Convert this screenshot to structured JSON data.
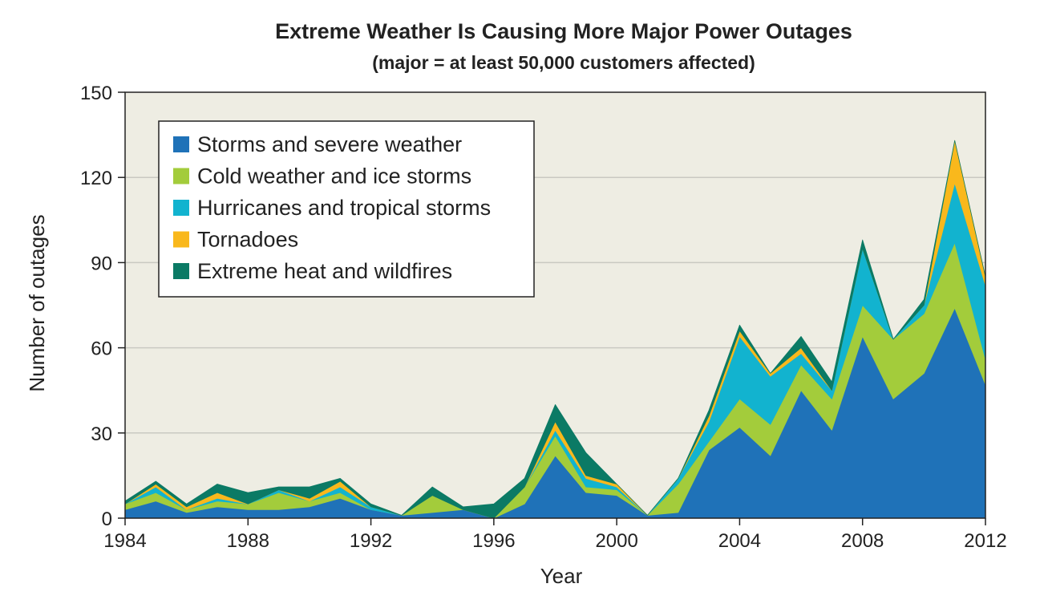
{
  "chart_data": {
    "type": "area",
    "stacked": true,
    "title": "Extreme Weather Is Causing More Major Power Outages",
    "subtitle": "(major = at least 50,000 customers affected)",
    "xlabel": "Year",
    "ylabel": "Number of outages",
    "x": [
      1984,
      1985,
      1986,
      1987,
      1988,
      1989,
      1990,
      1991,
      1992,
      1993,
      1994,
      1995,
      1996,
      1997,
      1998,
      1999,
      2000,
      2001,
      2002,
      2003,
      2004,
      2005,
      2006,
      2007,
      2008,
      2009,
      2010,
      2011,
      2012
    ],
    "xlim": [
      1984,
      2012
    ],
    "ylim": [
      0,
      150
    ],
    "xticks": [
      "1984",
      "1988",
      "1992",
      "1996",
      "2000",
      "2004",
      "2008",
      "2012"
    ],
    "xtick_values": [
      1984,
      1988,
      1992,
      1996,
      2000,
      2004,
      2008,
      2012
    ],
    "yticks": [
      "0",
      "30",
      "60",
      "90",
      "120",
      "150"
    ],
    "ytick_values": [
      0,
      30,
      60,
      90,
      120,
      150
    ],
    "grid": "horizontal",
    "legend_position": "top-left",
    "series": [
      {
        "name": "Storms and severe weather",
        "color": "#1f72b8",
        "values": [
          3,
          6,
          2,
          4,
          3,
          3,
          4,
          7,
          3,
          1,
          2,
          3,
          0,
          5,
          22,
          9,
          8,
          1,
          2,
          24,
          32,
          22,
          45,
          31,
          64,
          42,
          51,
          74,
          47
        ]
      },
      {
        "name": "Cold weather and ice storms",
        "color": "#a3cc3b",
        "values": [
          2,
          3,
          1,
          2,
          2,
          6,
          2,
          2,
          0,
          0,
          6,
          0,
          0,
          6,
          7,
          2,
          2,
          0,
          10,
          3,
          10,
          11,
          9,
          11,
          11,
          21,
          21,
          23,
          9
        ]
      },
      {
        "name": "Hurricanes and tropical storms",
        "color": "#12b3cf",
        "values": [
          0,
          2,
          0,
          1,
          0,
          1,
          0,
          2,
          1,
          0,
          0,
          0,
          0,
          0,
          2,
          3,
          1,
          0,
          2,
          7,
          22,
          17,
          4,
          3,
          20,
          0,
          3,
          21,
          26
        ]
      },
      {
        "name": "Tornadoes",
        "color": "#f9b81c",
        "values": [
          0,
          1,
          1,
          2,
          0,
          0,
          1,
          2,
          0,
          0,
          0,
          0,
          0,
          0,
          3,
          1,
          1,
          0,
          0,
          2,
          2,
          1,
          2,
          0,
          0,
          0,
          0,
          15,
          3
        ]
      },
      {
        "name": "Extreme heat and wildfires",
        "color": "#0b7a65",
        "values": [
          1,
          1,
          1,
          3,
          4,
          1,
          4,
          1,
          1,
          0,
          3,
          1,
          5,
          3,
          6,
          8,
          0,
          0,
          0,
          2,
          2,
          0,
          4,
          3,
          3,
          0,
          2,
          0,
          0
        ]
      }
    ]
  }
}
